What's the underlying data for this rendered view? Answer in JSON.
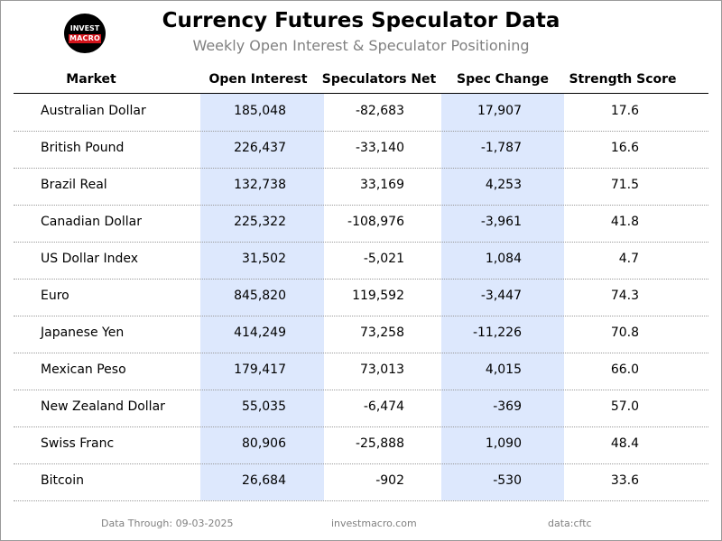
{
  "header": {
    "title": "Currency Futures Speculator Data",
    "subtitle": "Weekly Open Interest & Speculator Positioning",
    "logo_line1": "INVEST",
    "logo_line2": "MACRO"
  },
  "columns": [
    "Market",
    "Open Interest",
    "Speculators Net",
    "Spec Change",
    "Strength Score"
  ],
  "rows": [
    {
      "market": "Australian Dollar",
      "open_interest": "185,048",
      "spec_net": "-82,683",
      "spec_change": "17,907",
      "strength": "17.6"
    },
    {
      "market": "British Pound",
      "open_interest": "226,437",
      "spec_net": "-33,140",
      "spec_change": "-1,787",
      "strength": "16.6"
    },
    {
      "market": "Brazil Real",
      "open_interest": "132,738",
      "spec_net": "33,169",
      "spec_change": "4,253",
      "strength": "71.5"
    },
    {
      "market": "Canadian Dollar",
      "open_interest": "225,322",
      "spec_net": "-108,976",
      "spec_change": "-3,961",
      "strength": "41.8"
    },
    {
      "market": "US Dollar Index",
      "open_interest": "31,502",
      "spec_net": "-5,021",
      "spec_change": "1,084",
      "strength": "4.7"
    },
    {
      "market": "Euro",
      "open_interest": "845,820",
      "spec_net": "119,592",
      "spec_change": "-3,447",
      "strength": "74.3"
    },
    {
      "market": "Japanese Yen",
      "open_interest": "414,249",
      "spec_net": "73,258",
      "spec_change": "-11,226",
      "strength": "70.8"
    },
    {
      "market": "Mexican Peso",
      "open_interest": "179,417",
      "spec_net": "73,013",
      "spec_change": "4,015",
      "strength": "66.0"
    },
    {
      "market": "New Zealand Dollar",
      "open_interest": "55,035",
      "spec_net": "-6,474",
      "spec_change": "-369",
      "strength": "57.0"
    },
    {
      "market": "Swiss Franc",
      "open_interest": "80,906",
      "spec_net": "-25,888",
      "spec_change": "1,090",
      "strength": "48.4"
    },
    {
      "market": "Bitcoin",
      "open_interest": "26,684",
      "spec_net": "-902",
      "spec_change": "-530",
      "strength": "33.6"
    }
  ],
  "footer": {
    "date": "Data Through: 09-03-2025",
    "site": "investmacro.com",
    "source": "data:cftc"
  },
  "colors": {
    "shade": "#dde8fd",
    "subtitle": "#808080",
    "logo_red": "#d4141c"
  }
}
